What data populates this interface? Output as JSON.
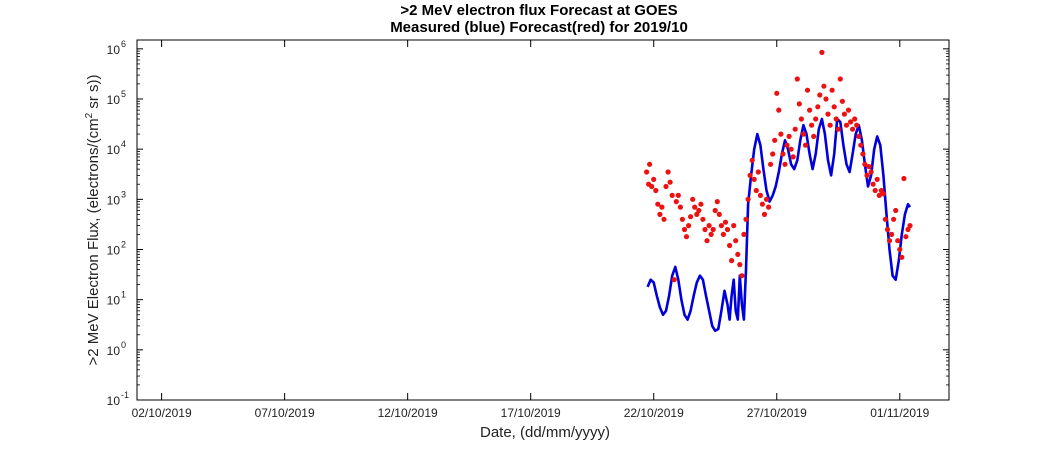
{
  "chart_data": {
    "type": "scatter",
    "title": ">2 MeV electron flux Forecast at GOES",
    "subtitle": "Measured (blue) Forecast(red) for 2019/10",
    "xlabel": "Date, (dd/mm/yyyy)",
    "ylabel_pre": ">2 MeV Electron Flux, (electrons/(cm",
    "ylabel_sup": "2",
    "ylabel_post": " sr s))",
    "x_scale": "date",
    "y_scale": "log",
    "xlim": [
      "2019-10-01",
      "2019-11-03"
    ],
    "ylim": [
      0.1,
      1500000
    ],
    "grid": false,
    "legend": "none",
    "x_ticks": [
      "02/10/2019",
      "07/10/2019",
      "12/10/2019",
      "17/10/2019",
      "22/10/2019",
      "27/10/2019",
      "01/11/2019"
    ],
    "y_tick_exponents": [
      "-1",
      "0",
      "1",
      "2",
      "3",
      "4",
      "5",
      "6"
    ],
    "y_tick_base": "10",
    "series": [
      {
        "color": "#0000dd",
        "style": "line",
        "points": [
          [
            "2019-10-21 18:00",
            18
          ],
          [
            "2019-10-21 21:00",
            25
          ],
          [
            "2019-10-22 00:00",
            22
          ],
          [
            "2019-10-22 03:00",
            12
          ],
          [
            "2019-10-22 06:00",
            7
          ],
          [
            "2019-10-22 09:00",
            5
          ],
          [
            "2019-10-22 12:00",
            6
          ],
          [
            "2019-10-22 15:00",
            12
          ],
          [
            "2019-10-22 18:00",
            30
          ],
          [
            "2019-10-22 21:00",
            45
          ],
          [
            "2019-10-23 00:00",
            25
          ],
          [
            "2019-10-23 03:00",
            10
          ],
          [
            "2019-10-23 06:00",
            5
          ],
          [
            "2019-10-23 09:00",
            4
          ],
          [
            "2019-10-23 12:00",
            6
          ],
          [
            "2019-10-23 15:00",
            12
          ],
          [
            "2019-10-23 18:00",
            22
          ],
          [
            "2019-10-23 21:00",
            30
          ],
          [
            "2019-10-24 00:00",
            25
          ],
          [
            "2019-10-24 03:00",
            12
          ],
          [
            "2019-10-24 06:00",
            6
          ],
          [
            "2019-10-24 09:00",
            3
          ],
          [
            "2019-10-24 12:00",
            2.4
          ],
          [
            "2019-10-24 15:00",
            2.6
          ],
          [
            "2019-10-24 18:00",
            6
          ],
          [
            "2019-10-24 21:00",
            15
          ],
          [
            "2019-10-25 00:00",
            8
          ],
          [
            "2019-10-25 02:00",
            4
          ],
          [
            "2019-10-25 04:00",
            12
          ],
          [
            "2019-10-25 06:00",
            25
          ],
          [
            "2019-10-25 08:00",
            6
          ],
          [
            "2019-10-25 10:00",
            4
          ],
          [
            "2019-10-25 12:00",
            30
          ],
          [
            "2019-10-25 14:00",
            8
          ],
          [
            "2019-10-25 16:00",
            4
          ],
          [
            "2019-10-25 18:00",
            40
          ],
          [
            "2019-10-25 20:00",
            800
          ],
          [
            "2019-10-25 23:00",
            3000
          ],
          [
            "2019-10-26 02:00",
            10000
          ],
          [
            "2019-10-26 05:00",
            20000
          ],
          [
            "2019-10-26 08:00",
            12000
          ],
          [
            "2019-10-26 11:00",
            4000
          ],
          [
            "2019-10-26 14:00",
            1500
          ],
          [
            "2019-10-26 17:00",
            900
          ],
          [
            "2019-10-26 20:00",
            1200
          ],
          [
            "2019-10-26 23:00",
            1800
          ],
          [
            "2019-10-27 02:00",
            3500
          ],
          [
            "2019-10-27 05:00",
            8000
          ],
          [
            "2019-10-27 08:00",
            15000
          ],
          [
            "2019-10-27 11:00",
            10000
          ],
          [
            "2019-10-27 14:00",
            5000
          ],
          [
            "2019-10-27 17:00",
            4000
          ],
          [
            "2019-10-27 20:00",
            6000
          ],
          [
            "2019-10-27 23:00",
            15000
          ],
          [
            "2019-10-28 02:00",
            30000
          ],
          [
            "2019-10-28 05:00",
            20000
          ],
          [
            "2019-10-28 08:00",
            8000
          ],
          [
            "2019-10-28 11:00",
            4000
          ],
          [
            "2019-10-28 14:00",
            8000
          ],
          [
            "2019-10-28 17:00",
            25000
          ],
          [
            "2019-10-28 20:00",
            40000
          ],
          [
            "2019-10-28 23:00",
            20000
          ],
          [
            "2019-10-29 02:00",
            6000
          ],
          [
            "2019-10-29 05:00",
            3000
          ],
          [
            "2019-10-29 08:00",
            8000
          ],
          [
            "2019-10-29 11:00",
            40000
          ],
          [
            "2019-10-29 14:00",
            35000
          ],
          [
            "2019-10-29 17:00",
            12000
          ],
          [
            "2019-10-29 20:00",
            5000
          ],
          [
            "2019-10-29 23:00",
            3500
          ],
          [
            "2019-10-30 02:00",
            8000
          ],
          [
            "2019-10-30 05:00",
            20000
          ],
          [
            "2019-10-30 08:00",
            30000
          ],
          [
            "2019-10-30 11:00",
            15000
          ],
          [
            "2019-10-30 14:00",
            5000
          ],
          [
            "2019-10-30 17:00",
            1800
          ],
          [
            "2019-10-30 20:00",
            3000
          ],
          [
            "2019-10-30 23:00",
            10000
          ],
          [
            "2019-10-31 02:00",
            18000
          ],
          [
            "2019-10-31 05:00",
            12000
          ],
          [
            "2019-10-31 08:00",
            3000
          ],
          [
            "2019-10-31 11:00",
            500
          ],
          [
            "2019-10-31 14:00",
            100
          ],
          [
            "2019-10-31 17:00",
            30
          ],
          [
            "2019-10-31 20:00",
            25
          ],
          [
            "2019-10-31 23:00",
            60
          ],
          [
            "2019-11-01 02:00",
            200
          ],
          [
            "2019-11-01 05:00",
            500
          ],
          [
            "2019-11-01 08:00",
            800
          ],
          [
            "2019-11-01 10:00",
            700
          ]
        ]
      },
      {
        "color": "#ee1111",
        "style": "dots",
        "points": [
          [
            "2019-10-21 17:00",
            3500
          ],
          [
            "2019-10-21 19:00",
            2000
          ],
          [
            "2019-10-21 20:00",
            5000
          ],
          [
            "2019-10-21 22:00",
            1800
          ],
          [
            "2019-10-22 00:00",
            2500
          ],
          [
            "2019-10-22 02:00",
            1500
          ],
          [
            "2019-10-22 04:00",
            800
          ],
          [
            "2019-10-22 06:00",
            500
          ],
          [
            "2019-10-22 08:00",
            700
          ],
          [
            "2019-10-22 10:00",
            400
          ],
          [
            "2019-10-22 12:00",
            1800
          ],
          [
            "2019-10-22 14:00",
            3500
          ],
          [
            "2019-10-22 16:00",
            2200
          ],
          [
            "2019-10-22 18:00",
            1200
          ],
          [
            "2019-10-22 20:00",
            25
          ],
          [
            "2019-10-22 22:00",
            900
          ],
          [
            "2019-10-23 00:00",
            1200
          ],
          [
            "2019-10-23 02:00",
            700
          ],
          [
            "2019-10-23 04:00",
            400
          ],
          [
            "2019-10-23 06:00",
            250
          ],
          [
            "2019-10-23 08:00",
            180
          ],
          [
            "2019-10-23 10:00",
            300
          ],
          [
            "2019-10-23 12:00",
            450
          ],
          [
            "2019-10-23 14:00",
            1000
          ],
          [
            "2019-10-23 16:00",
            700
          ],
          [
            "2019-10-23 18:00",
            500
          ],
          [
            "2019-10-23 20:00",
            600
          ],
          [
            "2019-10-23 22:00",
            800
          ],
          [
            "2019-10-24 00:00",
            400
          ],
          [
            "2019-10-24 02:00",
            250
          ],
          [
            "2019-10-24 04:00",
            150
          ],
          [
            "2019-10-24 06:00",
            300
          ],
          [
            "2019-10-24 08:00",
            200
          ],
          [
            "2019-10-24 10:00",
            250
          ],
          [
            "2019-10-24 12:00",
            600
          ],
          [
            "2019-10-24 14:00",
            900
          ],
          [
            "2019-10-24 16:00",
            500
          ],
          [
            "2019-10-24 18:00",
            300
          ],
          [
            "2019-10-24 20:00",
            200
          ],
          [
            "2019-10-24 22:00",
            350
          ],
          [
            "2019-10-25 00:00",
            250
          ],
          [
            "2019-10-25 02:00",
            120
          ],
          [
            "2019-10-25 04:00",
            60
          ],
          [
            "2019-10-25 06:00",
            300
          ],
          [
            "2019-10-25 08:00",
            150
          ],
          [
            "2019-10-25 10:00",
            80
          ],
          [
            "2019-10-25 12:00",
            50
          ],
          [
            "2019-10-25 14:00",
            30
          ],
          [
            "2019-10-25 16:00",
            200
          ],
          [
            "2019-10-25 18:00",
            400
          ],
          [
            "2019-10-25 20:00",
            1000
          ],
          [
            "2019-10-25 22:00",
            3000
          ],
          [
            "2019-10-26 00:00",
            6000
          ],
          [
            "2019-10-26 02:00",
            2500
          ],
          [
            "2019-10-26 04:00",
            1500
          ],
          [
            "2019-10-26 06:00",
            3500
          ],
          [
            "2019-10-26 08:00",
            1200
          ],
          [
            "2019-10-26 10:00",
            800
          ],
          [
            "2019-10-26 12:00",
            500
          ],
          [
            "2019-10-26 14:00",
            1000
          ],
          [
            "2019-10-26 16:00",
            700
          ],
          [
            "2019-10-26 18:00",
            5000
          ],
          [
            "2019-10-26 20:00",
            8000
          ],
          [
            "2019-10-26 22:00",
            15000
          ],
          [
            "2019-10-27 00:00",
            130000
          ],
          [
            "2019-10-27 02:00",
            60000
          ],
          [
            "2019-10-27 04:00",
            20000
          ],
          [
            "2019-10-27 06:00",
            8000
          ],
          [
            "2019-10-27 08:00",
            5000
          ],
          [
            "2019-10-27 10:00",
            12000
          ],
          [
            "2019-10-27 12:00",
            18000
          ],
          [
            "2019-10-27 14:00",
            10000
          ],
          [
            "2019-10-27 16:00",
            7000
          ],
          [
            "2019-10-27 18:00",
            25000
          ],
          [
            "2019-10-27 20:00",
            250000
          ],
          [
            "2019-10-27 22:00",
            80000
          ],
          [
            "2019-10-28 00:00",
            40000
          ],
          [
            "2019-10-28 02:00",
            20000
          ],
          [
            "2019-10-28 04:00",
            12000
          ],
          [
            "2019-10-28 06:00",
            150000
          ],
          [
            "2019-10-28 08:00",
            60000
          ],
          [
            "2019-10-28 10:00",
            30000
          ],
          [
            "2019-10-28 12:00",
            18000
          ],
          [
            "2019-10-28 14:00",
            40000
          ],
          [
            "2019-10-28 16:00",
            70000
          ],
          [
            "2019-10-28 18:00",
            120000
          ],
          [
            "2019-10-28 20:00",
            850000
          ],
          [
            "2019-10-28 22:00",
            180000
          ],
          [
            "2019-10-29 00:00",
            100000
          ],
          [
            "2019-10-29 02:00",
            50000
          ],
          [
            "2019-10-29 04:00",
            30000
          ],
          [
            "2019-10-29 06:00",
            150000
          ],
          [
            "2019-10-29 08:00",
            70000
          ],
          [
            "2019-10-29 10:00",
            40000
          ],
          [
            "2019-10-29 12:00",
            25000
          ],
          [
            "2019-10-29 14:00",
            250000
          ],
          [
            "2019-10-29 16:00",
            90000
          ],
          [
            "2019-10-29 18:00",
            50000
          ],
          [
            "2019-10-29 20:00",
            30000
          ],
          [
            "2019-10-29 22:00",
            60000
          ],
          [
            "2019-10-30 00:00",
            35000
          ],
          [
            "2019-10-30 02:00",
            25000
          ],
          [
            "2019-10-30 04:00",
            40000
          ],
          [
            "2019-10-30 06:00",
            30000
          ],
          [
            "2019-10-30 08:00",
            18000
          ],
          [
            "2019-10-30 10:00",
            12000
          ],
          [
            "2019-10-30 12:00",
            8000
          ],
          [
            "2019-10-30 14:00",
            5000
          ],
          [
            "2019-10-30 16:00",
            3000
          ],
          [
            "2019-10-30 18:00",
            4500
          ],
          [
            "2019-10-30 20:00",
            3500
          ],
          [
            "2019-10-30 22:00",
            2000
          ],
          [
            "2019-10-31 00:00",
            1500
          ],
          [
            "2019-10-31 02:00",
            2500
          ],
          [
            "2019-10-31 04:00",
            1200
          ],
          [
            "2019-10-31 06:00",
            1500
          ],
          [
            "2019-10-31 08:00",
            1300
          ],
          [
            "2019-10-31 10:00",
            400
          ],
          [
            "2019-10-31 12:00",
            250
          ],
          [
            "2019-10-31 14:00",
            150
          ],
          [
            "2019-10-31 16:00",
            200
          ],
          [
            "2019-10-31 18:00",
            400
          ],
          [
            "2019-10-31 20:00",
            600
          ],
          [
            "2019-10-31 22:00",
            150
          ],
          [
            "2019-11-01 00:00",
            100
          ],
          [
            "2019-11-01 02:00",
            70
          ],
          [
            "2019-11-01 04:00",
            2600
          ],
          [
            "2019-11-01 06:00",
            180
          ],
          [
            "2019-11-01 08:00",
            250
          ],
          [
            "2019-11-01 10:00",
            300
          ]
        ]
      }
    ]
  }
}
